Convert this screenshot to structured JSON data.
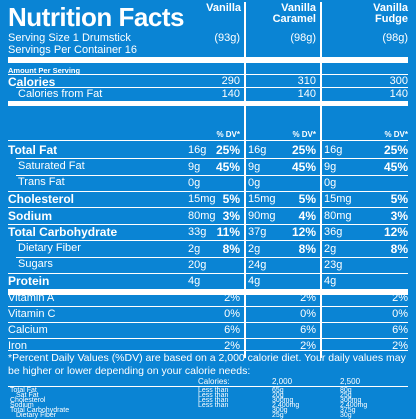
{
  "title": "Nutrition Facts",
  "columns": [
    "Vanilla",
    "Vanilla\nCaramel",
    "Vanilla\nFudge"
  ],
  "col1_label": "Vanilla",
  "col2_label_line1": "Vanilla",
  "col2_label_line2": "Caramel",
  "col3_label_line1": "Vanilla",
  "col3_label_line2": "Fudge",
  "serving_size": "Serving Size 1 Drumstick",
  "servings": "Servings Per Container 16",
  "sizes": [
    "(93g)",
    "(98g)",
    "(98g)"
  ],
  "amount_per_serving": "Amount Per Serving",
  "calories": {
    "label": "Calories",
    "values": [
      "290",
      "310",
      "300"
    ]
  },
  "calories_fat": {
    "label": "Calories from Fat",
    "values": [
      "140",
      "140",
      "140"
    ]
  },
  "dv_header": "% DV*",
  "nutrients": [
    {
      "label": "Total Fat",
      "bold": true,
      "amounts": [
        "16g",
        "16g",
        "16g"
      ],
      "dv": [
        "25%",
        "25%",
        "25%"
      ]
    },
    {
      "label": "Saturated Fat",
      "bold": false,
      "amounts": [
        "9g",
        "9g",
        "9g"
      ],
      "dv": [
        "45%",
        "45%",
        "45%"
      ]
    },
    {
      "label": "Trans Fat",
      "bold": false,
      "amounts": [
        "0g",
        "0g",
        "0g"
      ],
      "dv": [
        "",
        "",
        ""
      ]
    },
    {
      "label": "Cholesterol",
      "bold": true,
      "amounts": [
        "15mg",
        "15mg",
        "15mg"
      ],
      "dv": [
        "5%",
        "5%",
        "5%"
      ]
    },
    {
      "label": "Sodium",
      "bold": true,
      "amounts": [
        "80mg",
        "90mg",
        "80mg"
      ],
      "dv": [
        "3%",
        "4%",
        "3%"
      ]
    },
    {
      "label": "Total Carbohydrate",
      "bold": true,
      "amounts": [
        "33g",
        "37g",
        "36g"
      ],
      "dv": [
        "11%",
        "12%",
        "12%"
      ]
    },
    {
      "label": "Dietary Fiber",
      "bold": false,
      "amounts": [
        "2g",
        "2g",
        "2g"
      ],
      "dv": [
        "8%",
        "8%",
        "8%"
      ]
    },
    {
      "label": "Sugars",
      "bold": false,
      "amounts": [
        "20g",
        "24g",
        "23g"
      ],
      "dv": [
        "",
        "",
        ""
      ]
    },
    {
      "label": "Protein",
      "bold": true,
      "amounts": [
        "4g",
        "4g",
        "4g"
      ],
      "dv": [
        "",
        "",
        ""
      ]
    }
  ],
  "vitamins": [
    {
      "label": "Vitamin A",
      "dv": [
        "2%",
        "2%",
        "2%"
      ]
    },
    {
      "label": "Vitamin C",
      "dv": [
        "0%",
        "0%",
        "0%"
      ]
    },
    {
      "label": "Calcium",
      "dv": [
        "6%",
        "6%",
        "6%"
      ]
    },
    {
      "label": "Iron",
      "dv": [
        "2%",
        "2%",
        "2%"
      ]
    }
  ],
  "footnote": "*Percent Daily Values (%DV) are based on a 2,000 calorie diet. Your daily values may be higher or lower depending on your calorie needs:",
  "table": {
    "header": [
      "Calories:",
      "2,000",
      "2,500"
    ],
    "rows": [
      [
        "Total Fat",
        "Less than",
        "65g",
        "80g"
      ],
      [
        "Sat Fat",
        "Less than",
        "20g",
        "25g"
      ],
      [
        "Cholesterol",
        "Less than",
        "300mg",
        "300mg"
      ],
      [
        "Sodium",
        "Less than",
        "2,400mg",
        "2,400mg"
      ],
      [
        "Total Carbohydrate",
        "",
        "300g",
        "375g"
      ],
      [
        "Dietary Fiber",
        "",
        "25g",
        "30g"
      ]
    ]
  }
}
